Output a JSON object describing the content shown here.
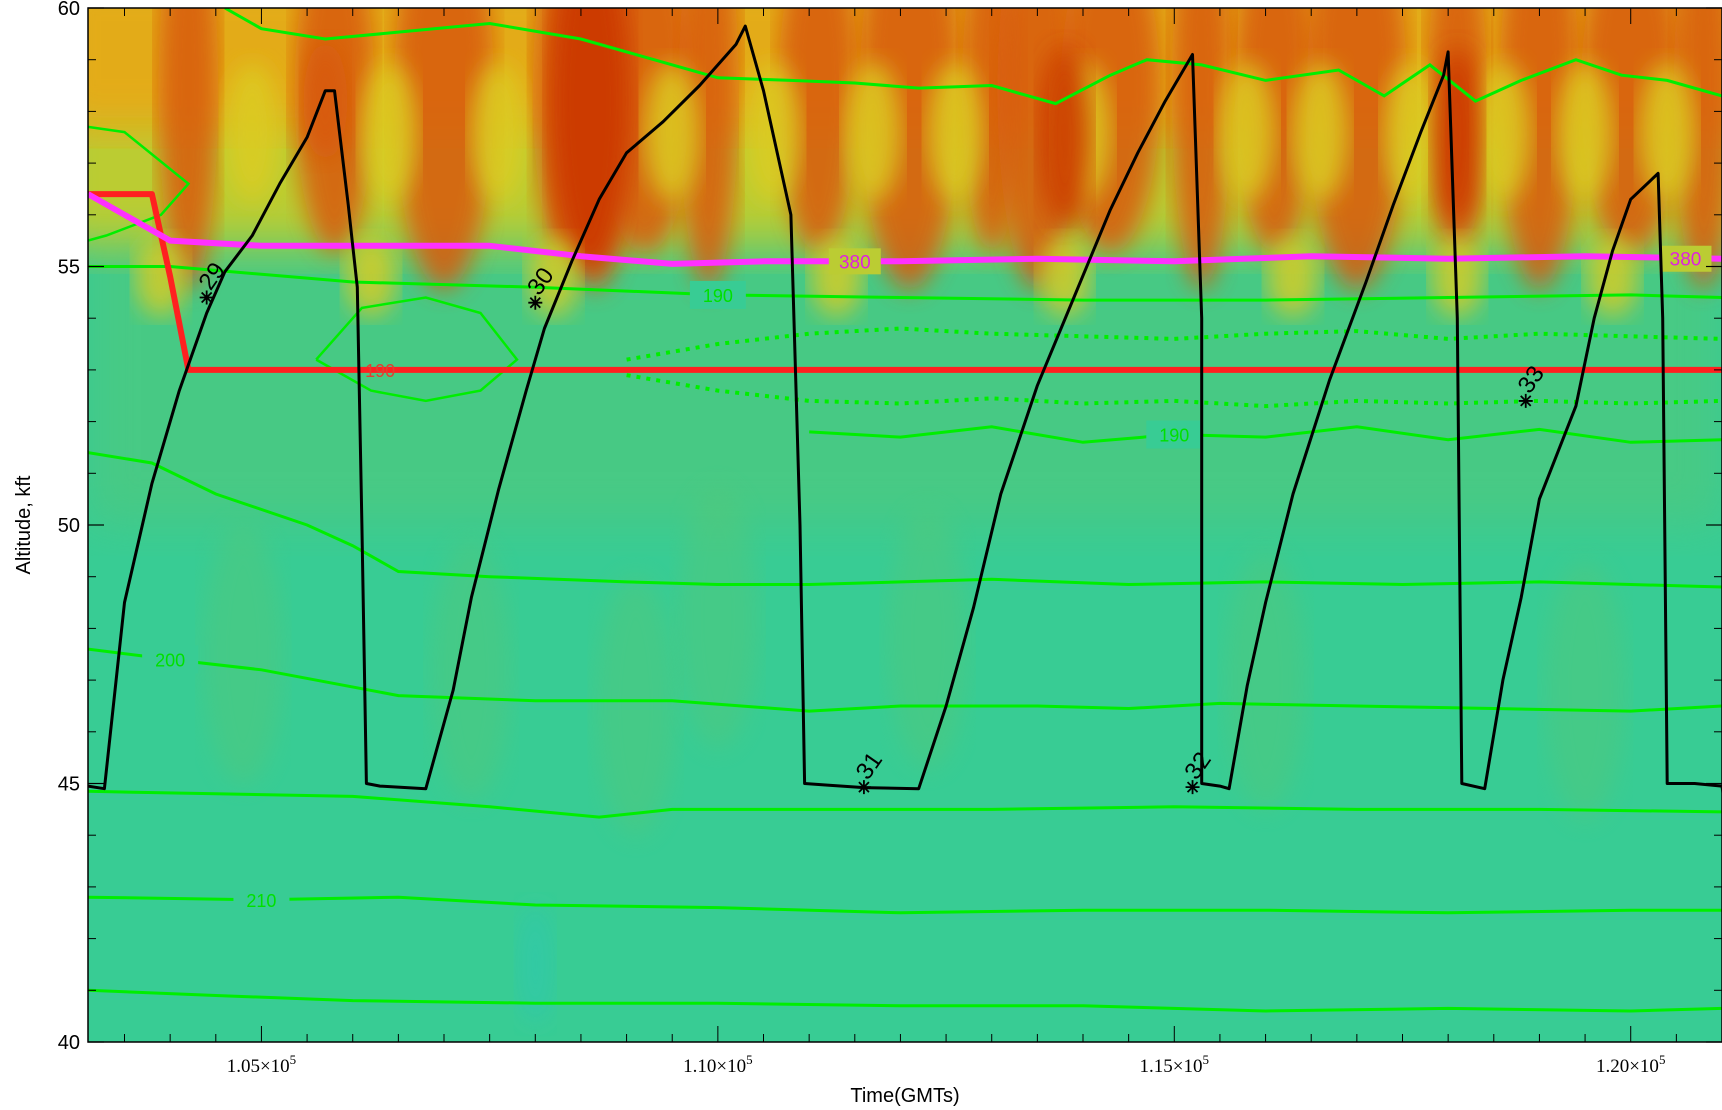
{
  "chart_data": {
    "type": "heatmap",
    "title": "",
    "xlabel": "Time(GMTs)",
    "ylabel": "Altitude, kft",
    "xlim": [
      103100,
      121000
    ],
    "ylim": [
      40,
      60
    ],
    "x_ticks": [
      {
        "value": 105000,
        "mant": "1.05×10",
        "exp": "5"
      },
      {
        "value": 110000,
        "mant": "1.10×10",
        "exp": "5"
      },
      {
        "value": 115000,
        "mant": "1.15×10",
        "exp": "5"
      },
      {
        "value": 120000,
        "mant": "1.20×10",
        "exp": "5"
      }
    ],
    "y_ticks": [
      40,
      45,
      50,
      55,
      60
    ],
    "minor_y_step": 1,
    "minor_x_step": 500,
    "background": {
      "description_free": true,
      "colormap": [
        "#33cc99",
        "#3ccc8a",
        "#55c878",
        "#88cc55",
        "#bbcc33",
        "#dccc22",
        "#e8a818",
        "#e07a10",
        "#d85a08",
        "#cc3a05"
      ],
      "base_color": "#38cc94"
    },
    "flight_altitude": {
      "color": "#000000",
      "points": [
        [
          103100,
          44.95
        ],
        [
          103280,
          44.9
        ],
        [
          103500,
          48.5
        ],
        [
          103800,
          50.8
        ],
        [
          104100,
          52.6
        ],
        [
          104400,
          54.1
        ],
        [
          104600,
          54.9
        ],
        [
          104900,
          55.6
        ],
        [
          105200,
          56.6
        ],
        [
          105500,
          57.5
        ],
        [
          105700,
          58.4
        ],
        [
          105800,
          58.4
        ],
        [
          105950,
          56.2
        ],
        [
          106050,
          54.6
        ],
        [
          106100,
          50.0
        ],
        [
          106150,
          45.0
        ],
        [
          106300,
          44.95
        ],
        [
          106800,
          44.9
        ],
        [
          107100,
          46.8
        ],
        [
          107300,
          48.6
        ],
        [
          107600,
          50.7
        ],
        [
          107900,
          52.6
        ],
        [
          108100,
          53.8
        ],
        [
          108400,
          55.1
        ],
        [
          108700,
          56.3
        ],
        [
          109000,
          57.2
        ],
        [
          109400,
          57.8
        ],
        [
          109800,
          58.5
        ],
        [
          110200,
          59.3
        ],
        [
          110300,
          59.65
        ],
        [
          110500,
          58.4
        ],
        [
          110800,
          56.0
        ],
        [
          110900,
          50.0
        ],
        [
          110950,
          45.0
        ],
        [
          111200,
          44.97
        ],
        [
          111600,
          44.92
        ],
        [
          112200,
          44.9
        ],
        [
          112500,
          46.5
        ],
        [
          112800,
          48.4
        ],
        [
          113100,
          50.6
        ],
        [
          113500,
          52.7
        ],
        [
          113900,
          54.4
        ],
        [
          114300,
          56.1
        ],
        [
          114600,
          57.2
        ],
        [
          114900,
          58.2
        ],
        [
          115200,
          59.1
        ],
        [
          115300,
          54.0
        ],
        [
          115300,
          45.0
        ],
        [
          115500,
          44.95
        ],
        [
          115600,
          44.9
        ],
        [
          115800,
          46.9
        ],
        [
          116000,
          48.5
        ],
        [
          116300,
          50.6
        ],
        [
          116700,
          52.8
        ],
        [
          117100,
          54.7
        ],
        [
          117400,
          56.2
        ],
        [
          117700,
          57.6
        ],
        [
          117950,
          58.7
        ],
        [
          118000,
          59.15
        ],
        [
          118100,
          54.0
        ],
        [
          118150,
          45.0
        ],
        [
          118400,
          44.9
        ],
        [
          118600,
          47.0
        ],
        [
          118800,
          48.6
        ],
        [
          119000,
          50.5
        ],
        [
          119400,
          52.3
        ],
        [
          119600,
          54.0
        ],
        [
          119800,
          55.3
        ],
        [
          120000,
          56.3
        ],
        [
          120300,
          56.8
        ],
        [
          120350,
          54.0
        ],
        [
          120400,
          45.0
        ],
        [
          120700,
          45.0
        ],
        [
          121000,
          44.95
        ],
        [
          121200,
          42.5
        ]
      ]
    },
    "pointer_markers": [
      {
        "label": "29",
        "x": 104400,
        "y": 54.4
      },
      {
        "label": "30",
        "x": 108000,
        "y": 54.3
      },
      {
        "label": "31",
        "x": 111600,
        "y": 44.93
      },
      {
        "label": "32",
        "x": 115200,
        "y": 44.93
      },
      {
        "label": "33",
        "x": 118850,
        "y": 52.4
      }
    ],
    "tropopause_line": {
      "color": "#ff2020",
      "label": "190",
      "points": [
        [
          103100,
          56.4
        ],
        [
          103800,
          56.4
        ],
        [
          104000,
          54.8
        ],
        [
          104200,
          53.0
        ],
        [
          121000,
          53.0
        ]
      ]
    },
    "isentrope_380": {
      "color": "#ff30ff",
      "label": "380",
      "points": [
        [
          103100,
          56.4
        ],
        [
          103500,
          56.0
        ],
        [
          104000,
          55.5
        ],
        [
          105000,
          55.4
        ],
        [
          106500,
          55.4
        ],
        [
          107500,
          55.4
        ],
        [
          108500,
          55.2
        ],
        [
          109500,
          55.05
        ],
        [
          110500,
          55.1
        ],
        [
          112000,
          55.1
        ],
        [
          113500,
          55.15
        ],
        [
          115000,
          55.1
        ],
        [
          116500,
          55.2
        ],
        [
          118000,
          55.15
        ],
        [
          119500,
          55.2
        ],
        [
          121000,
          55.15
        ]
      ]
    },
    "temperature_contours": {
      "color": "#00ee00",
      "lines": [
        {
          "label": "190",
          "points": [
            [
              103100,
              55.0
            ],
            [
              104000,
              55.0
            ],
            [
              106000,
              54.7
            ],
            [
              108000,
              54.6
            ],
            [
              110000,
              54.45
            ],
            [
              112000,
              54.4
            ],
            [
              114000,
              54.35
            ],
            [
              116000,
              54.35
            ],
            [
              118000,
              54.4
            ],
            [
              120000,
              54.45
            ],
            [
              121000,
              54.4
            ]
          ]
        },
        {
          "label": "190",
          "points": [
            [
              111000,
              51.8
            ],
            [
              112000,
              51.7
            ],
            [
              113000,
              51.9
            ],
            [
              114000,
              51.6
            ],
            [
              115000,
              51.75
            ],
            [
              116000,
              51.7
            ],
            [
              117000,
              51.9
            ],
            [
              118000,
              51.65
            ],
            [
              119000,
              51.85
            ],
            [
              120000,
              51.6
            ],
            [
              121000,
              51.65
            ]
          ]
        },
        {
          "label": "",
          "points": [
            [
              103100,
              51.4
            ],
            [
              103800,
              51.2
            ],
            [
              104500,
              50.6
            ],
            [
              105500,
              50.0
            ],
            [
              106000,
              49.6
            ],
            [
              106500,
              49.1
            ],
            [
              107500,
              49.0
            ],
            [
              109000,
              48.9
            ],
            [
              110000,
              48.85
            ],
            [
              111000,
              48.85
            ],
            [
              113000,
              48.95
            ],
            [
              114500,
              48.85
            ],
            [
              116000,
              48.9
            ],
            [
              117500,
              48.85
            ],
            [
              119000,
              48.9
            ],
            [
              120000,
              48.85
            ],
            [
              121000,
              48.8
            ]
          ]
        },
        {
          "label": "200",
          "points": [
            [
              103100,
              47.6
            ],
            [
              104000,
              47.4
            ],
            [
              105000,
              47.2
            ],
            [
              106500,
              46.7
            ],
            [
              108000,
              46.6
            ],
            [
              109500,
              46.6
            ],
            [
              111000,
              46.4
            ],
            [
              112000,
              46.5
            ],
            [
              113500,
              46.5
            ],
            [
              114500,
              46.45
            ],
            [
              115500,
              46.55
            ],
            [
              117000,
              46.5
            ],
            [
              118500,
              46.45
            ],
            [
              120000,
              46.4
            ],
            [
              121000,
              46.5
            ]
          ]
        },
        {
          "label": "",
          "points": [
            [
              103100,
              44.85
            ],
            [
              104500,
              44.8
            ],
            [
              106000,
              44.75
            ],
            [
              107500,
              44.55
            ],
            [
              108700,
              44.35
            ],
            [
              109500,
              44.5
            ],
            [
              111000,
              44.5
            ],
            [
              113000,
              44.5
            ],
            [
              115000,
              44.55
            ],
            [
              117000,
              44.5
            ],
            [
              119000,
              44.5
            ],
            [
              121000,
              44.45
            ]
          ]
        },
        {
          "label": "210",
          "points": [
            [
              103100,
              42.8
            ],
            [
              105000,
              42.75
            ],
            [
              106500,
              42.8
            ],
            [
              108000,
              42.65
            ],
            [
              110000,
              42.6
            ],
            [
              112000,
              42.5
            ],
            [
              114000,
              42.55
            ],
            [
              116000,
              42.55
            ],
            [
              118000,
              42.5
            ],
            [
              120000,
              42.55
            ],
            [
              121000,
              42.55
            ]
          ]
        },
        {
          "label": "",
          "points": [
            [
              103100,
              41.0
            ],
            [
              104500,
              40.9
            ],
            [
              106000,
              40.8
            ],
            [
              108000,
              40.75
            ],
            [
              110000,
              40.75
            ],
            [
              112000,
              40.7
            ],
            [
              114000,
              40.7
            ],
            [
              116000,
              40.6
            ],
            [
              118000,
              40.65
            ],
            [
              120000,
              40.6
            ],
            [
              121000,
              40.65
            ]
          ]
        }
      ],
      "top_band": [
        [
          104600,
          60.0
        ],
        [
          105000,
          59.6
        ],
        [
          105700,
          59.4
        ],
        [
          106600,
          59.55
        ],
        [
          107500,
          59.7
        ],
        [
          108500,
          59.4
        ],
        [
          109300,
          59.0
        ],
        [
          110000,
          58.65
        ],
        [
          110800,
          58.6
        ],
        [
          111500,
          58.55
        ],
        [
          112200,
          58.45
        ],
        [
          113000,
          58.5
        ],
        [
          113700,
          58.15
        ],
        [
          114300,
          58.7
        ],
        [
          114700,
          59.0
        ],
        [
          115300,
          58.9
        ],
        [
          116000,
          58.6
        ],
        [
          116800,
          58.8
        ],
        [
          117300,
          58.3
        ],
        [
          117800,
          58.9
        ],
        [
          118300,
          58.2
        ],
        [
          118800,
          58.6
        ],
        [
          119400,
          59.0
        ],
        [
          119900,
          58.7
        ],
        [
          120400,
          58.6
        ],
        [
          121000,
          58.3
        ]
      ],
      "closed_loops": [
        [
          [
            103100,
            57.7
          ],
          [
            103500,
            57.6
          ],
          [
            104200,
            56.6
          ],
          [
            103900,
            56.0
          ],
          [
            103300,
            55.6
          ],
          [
            103100,
            55.5
          ]
        ],
        [
          [
            105600,
            53.2
          ],
          [
            106100,
            54.2
          ],
          [
            106800,
            54.4
          ],
          [
            107400,
            54.1
          ],
          [
            107800,
            53.2
          ],
          [
            107400,
            52.6
          ],
          [
            106800,
            52.4
          ],
          [
            106200,
            52.6
          ],
          [
            105600,
            53.2
          ]
        ]
      ],
      "dotted_bands": [
        {
          "upper": [
            [
              109000,
              53.2
            ],
            [
              110000,
              53.5
            ],
            [
              111000,
              53.7
            ],
            [
              112000,
              53.8
            ],
            [
              113000,
              53.7
            ],
            [
              114000,
              53.65
            ],
            [
              115000,
              53.6
            ],
            [
              116000,
              53.7
            ],
            [
              117000,
              53.75
            ],
            [
              118000,
              53.6
            ],
            [
              119000,
              53.7
            ],
            [
              120000,
              53.65
            ],
            [
              121000,
              53.6
            ]
          ]
        },
        {
          "upper": [
            [
              109000,
              52.9
            ],
            [
              110000,
              52.6
            ],
            [
              111000,
              52.4
            ],
            [
              112000,
              52.35
            ],
            [
              113000,
              52.45
            ],
            [
              114000,
              52.35
            ],
            [
              115000,
              52.4
            ],
            [
              116000,
              52.3
            ],
            [
              117000,
              52.4
            ],
            [
              118000,
              52.35
            ],
            [
              119000,
              52.4
            ],
            [
              120000,
              52.35
            ],
            [
              121000,
              52.4
            ]
          ]
        }
      ]
    }
  }
}
